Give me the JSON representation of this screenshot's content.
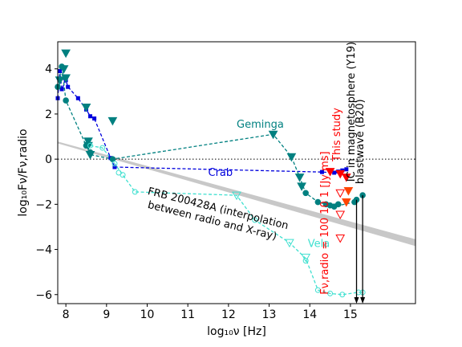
{
  "chart_data": {
    "type": "scatter",
    "title": "",
    "xlabel": "log₁₀ν [Hz]",
    "ylabel": "log₁₀Fν/Fν,radio",
    "xlim": [
      7.8,
      16.6
    ],
    "ylim": [
      -6.4,
      5.2
    ],
    "xticks": [
      8,
      9,
      10,
      11,
      12,
      13,
      14,
      15
    ],
    "yticks": [
      -6,
      -4,
      -2,
      0,
      2,
      4
    ],
    "grid": false,
    "legend": "none",
    "reference_line_y": 0,
    "series": [
      {
        "name": "Crab",
        "color": "#0000dd",
        "marker": "square",
        "x": [
          7.8,
          7.85,
          7.9,
          8.0,
          8.05,
          8.3,
          8.5,
          8.6,
          8.7,
          9.1,
          9.2,
          14.3,
          14.6,
          14.7,
          14.8,
          14.9
        ],
        "y": [
          2.7,
          3.9,
          3.1,
          3.5,
          3.2,
          2.7,
          2.2,
          1.9,
          1.8,
          0.05,
          -0.35,
          -0.57,
          -0.6,
          -0.55,
          -0.5,
          -0.45
        ]
      },
      {
        "name": "Geminga",
        "color": "#008080",
        "marker": "triangle-down",
        "x": [
          7.85,
          7.95,
          8.0,
          8.0,
          8.5,
          8.55,
          8.55,
          8.6,
          9.15,
          13.1,
          13.55,
          13.75,
          13.8
        ],
        "y": [
          3.5,
          4.0,
          4.7,
          3.6,
          2.3,
          0.8,
          0.6,
          0.2,
          1.7,
          1.1,
          0.1,
          -0.8,
          -1.2
        ]
      },
      {
        "name": "Geminga",
        "color": "#008080",
        "marker": "circle",
        "x": [
          7.8,
          7.9,
          8.0,
          8.5,
          8.6,
          9.15,
          13.9,
          14.2,
          14.4,
          14.5,
          14.6,
          14.7,
          15.1,
          15.15,
          15.3
        ],
        "y": [
          3.2,
          4.1,
          2.6,
          0.6,
          0.3,
          0.0,
          -1.5,
          -1.9,
          -2.0,
          -2.05,
          -2.1,
          -2.0,
          -1.9,
          -1.8,
          -1.6
        ]
      },
      {
        "name": "Vela",
        "color": "#40e0d0",
        "marker": "circle-open",
        "x": [
          8.6,
          8.9,
          9.2,
          9.3,
          9.4,
          9.7,
          12.65,
          13.9,
          14.2,
          14.5,
          14.8,
          15.2,
          15.3
        ],
        "y": [
          0.6,
          0.5,
          -0.2,
          -0.6,
          -0.7,
          -1.45,
          -2.7,
          -4.5,
          -5.8,
          -5.95,
          -6.0,
          -5.9,
          -5.9
        ]
      },
      {
        "name": "Vela",
        "color": "#40e0d0",
        "marker": "triangle-down-open",
        "x": [
          12.2,
          13.5,
          13.9
        ],
        "y": [
          -1.6,
          -3.7,
          -4.35
        ]
      },
      {
        "name": "This study",
        "color": "#ff0000",
        "marker": "triangle-down",
        "x": [
          14.5,
          14.75,
          14.9
        ],
        "y": [
          -0.55,
          -0.65,
          -0.8
        ]
      },
      {
        "name": "This study",
        "color": "#ff0000",
        "marker": "triangle-down-open",
        "x": [
          14.75,
          14.75
        ],
        "y": [
          -1.5,
          -2.45
        ]
      },
      {
        "name": "This study",
        "color": "#ff0000",
        "marker": "triangle-down-open",
        "x": [
          14.75
        ],
        "y": [
          -3.5
        ]
      },
      {
        "name": "This study",
        "color": "#ff4500",
        "marker": "triangle-down",
        "x": [
          14.95,
          14.9
        ],
        "y": [
          -1.4,
          -1.9
        ]
      }
    ],
    "lines": [
      {
        "name": "Crab",
        "color": "#0000dd",
        "style": "dashed",
        "x": [
          7.8,
          7.85,
          7.9,
          8.0,
          8.05,
          8.3,
          8.5,
          8.6,
          8.7,
          9.1,
          9.2,
          14.3,
          14.6,
          14.7,
          14.8,
          14.9
        ],
        "y": [
          2.7,
          3.9,
          3.1,
          3.5,
          3.2,
          2.7,
          2.2,
          1.9,
          1.8,
          0.05,
          -0.35,
          -0.57,
          -0.6,
          -0.55,
          -0.5,
          -0.45
        ]
      },
      {
        "name": "Geminga",
        "color": "#008080",
        "style": "dashed",
        "x": [
          7.8,
          7.9,
          8.0,
          8.5,
          8.6,
          9.15,
          13.1,
          13.55,
          13.75,
          13.9,
          14.2,
          14.4,
          14.6,
          15.1,
          15.3
        ],
        "y": [
          3.2,
          4.1,
          2.6,
          0.6,
          0.2,
          0.0,
          1.1,
          0.1,
          -0.8,
          -1.5,
          -1.9,
          -2.0,
          -2.1,
          -1.9,
          -1.6
        ]
      },
      {
        "name": "Vela",
        "color": "#40e0d0",
        "style": "dashed",
        "x": [
          8.6,
          8.9,
          9.2,
          9.4,
          9.7,
          12.2,
          12.65,
          13.5,
          13.9,
          14.2,
          14.5,
          14.8,
          15.2,
          15.3
        ],
        "y": [
          0.6,
          0.5,
          -0.2,
          -0.7,
          -1.45,
          -1.6,
          -2.7,
          -3.7,
          -4.4,
          -5.8,
          -5.95,
          -6.0,
          -5.9,
          -5.9
        ]
      }
    ],
    "frb_band": {
      "name": "FRB 200428A (interpolation between radio and X-ray)",
      "color": "#c8c8c8",
      "x": [
        7.8,
        16.6
      ],
      "y_upper": [
        0.78,
        -3.55
      ],
      "y_lower": [
        0.7,
        -3.85
      ]
    },
    "arrows": [
      {
        "x": 15.15,
        "y_from": -1.8,
        "y_to": -6.4,
        "color": "#000000"
      },
      {
        "x": 15.3,
        "y_from": -1.6,
        "y_to": -6.4,
        "color": "#000000"
      }
    ],
    "annotations": [
      {
        "text": "Geminga",
        "x": 12.2,
        "y": 1.4,
        "color": "#008080",
        "rotation": 0
      },
      {
        "text": "Crab",
        "x": 11.5,
        "y": -0.75,
        "color": "#0000dd",
        "rotation": 0
      },
      {
        "text": "Vela",
        "x": 13.95,
        "y": -3.9,
        "color": "#40e0d0",
        "rotation": 0
      },
      {
        "text": "FRB 200428A (interpolation",
        "x": 10.0,
        "y": -1.55,
        "color": "#000000",
        "rotation": 14
      },
      {
        "text": "between radio and X-ray)",
        "x": 10.0,
        "y": -2.15,
        "color": "#000000",
        "rotation": 14
      },
      {
        "text": "Fν,radio = 100   10    1 [Jy ms]",
        "x": 14.45,
        "y": -6.0,
        "color": "#ff0000",
        "rotation": -90
      },
      {
        "text": "This study",
        "x": 14.75,
        "y": -0.1,
        "color": "#ff0000",
        "rotation": -90
      },
      {
        "text": "IC in magnetosphere (Y19)",
        "x": 15.1,
        "y": -1.0,
        "color": "#000000",
        "rotation": -90
      },
      {
        "text": "blastwave (B20)",
        "x": 15.32,
        "y": -1.1,
        "color": "#000000",
        "rotation": -90
      }
    ]
  }
}
